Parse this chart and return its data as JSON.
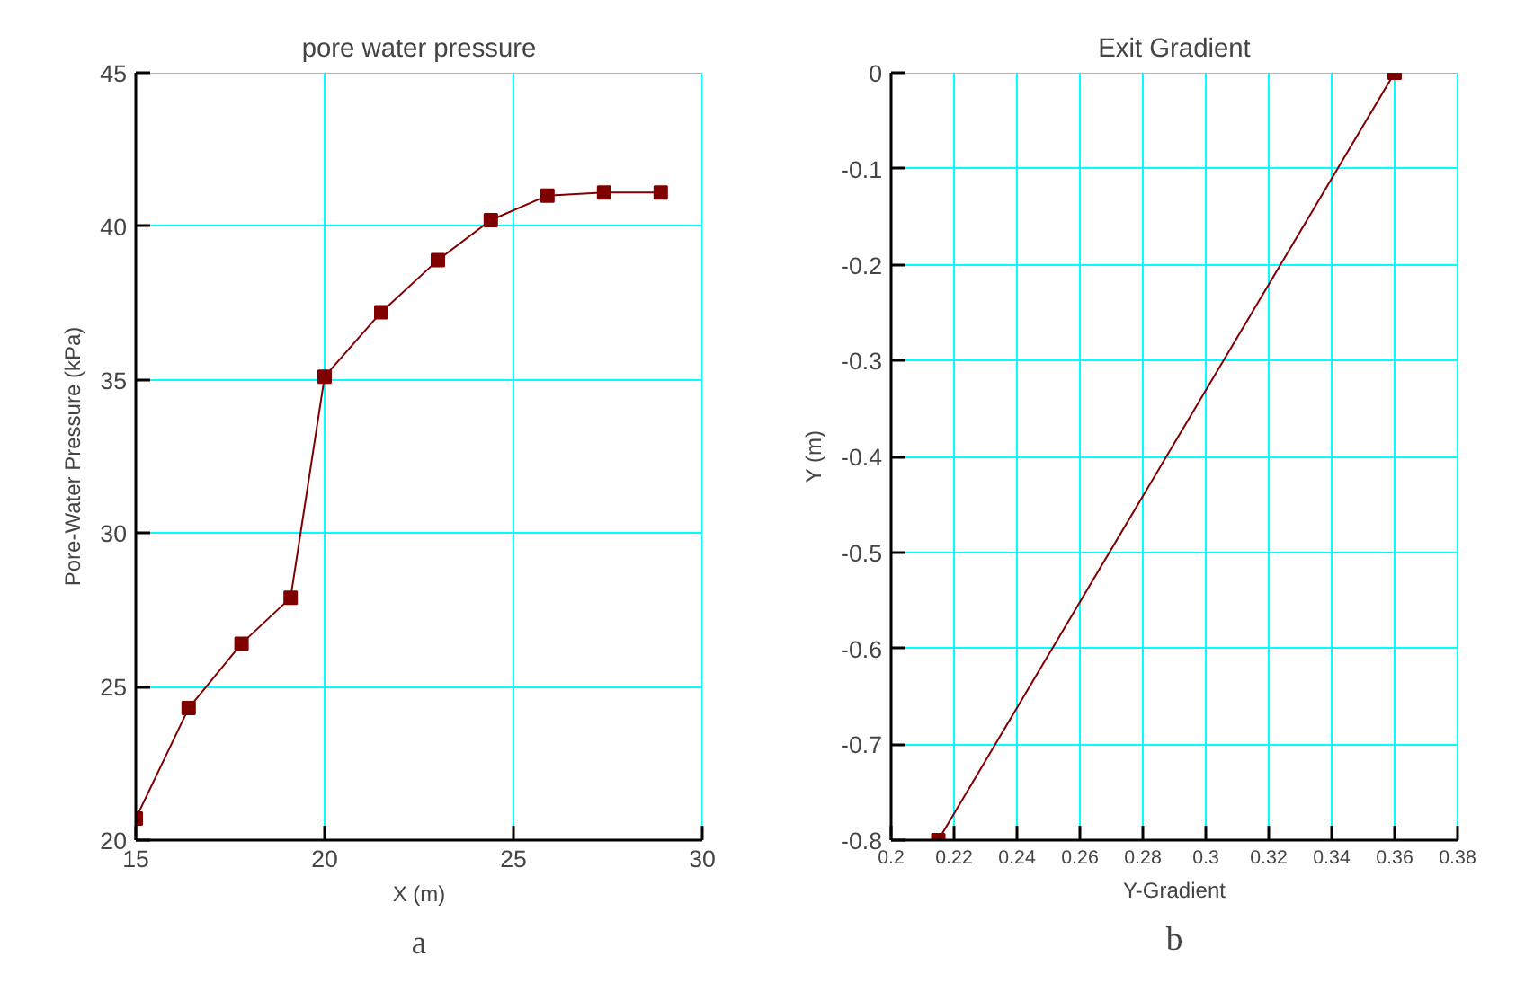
{
  "chart_data": [
    {
      "type": "line",
      "title": "pore water pressure",
      "xlabel": "X (m)",
      "ylabel": "Pore-Water Pressure (kPa)",
      "annotations": [
        "a"
      ],
      "x": [
        15,
        16.4,
        17.8,
        19.1,
        20,
        21.5,
        23,
        24.4,
        25.9,
        27.4,
        28.9
      ],
      "series": [
        {
          "color": "#800000",
          "values": [
            20.7,
            24.3,
            26.4,
            27.9,
            35.1,
            37.2,
            38.9,
            40.2,
            41.0,
            41.1,
            41.1
          ]
        }
      ],
      "xlim": [
        15,
        30
      ],
      "xticks": [
        15,
        20,
        25,
        30
      ],
      "ylim": [
        20,
        45
      ],
      "yticks": [
        20,
        25,
        30,
        35,
        40,
        45
      ],
      "grid": true,
      "marker": "square",
      "line_style": "solid"
    },
    {
      "type": "line",
      "title": "Exit Gradient",
      "xlabel": "Y-Gradient",
      "ylabel": "Y (m)",
      "annotations": [
        "b"
      ],
      "x": [
        0.215,
        0.36
      ],
      "series": [
        {
          "color": "#800000",
          "values": [
            -0.8,
            0
          ]
        }
      ],
      "xlim": [
        0.2,
        0.38
      ],
      "xticks": [
        0.2,
        0.22,
        0.24,
        0.26,
        0.28,
        0.3,
        0.32,
        0.34,
        0.36,
        0.38
      ],
      "ylim": [
        -0.8,
        0
      ],
      "yticks": [
        -0.8,
        -0.7,
        -0.6,
        -0.5,
        -0.4,
        -0.3,
        -0.2,
        -0.1,
        0
      ],
      "grid": true,
      "marker": "square",
      "line_style": "solid"
    }
  ]
}
